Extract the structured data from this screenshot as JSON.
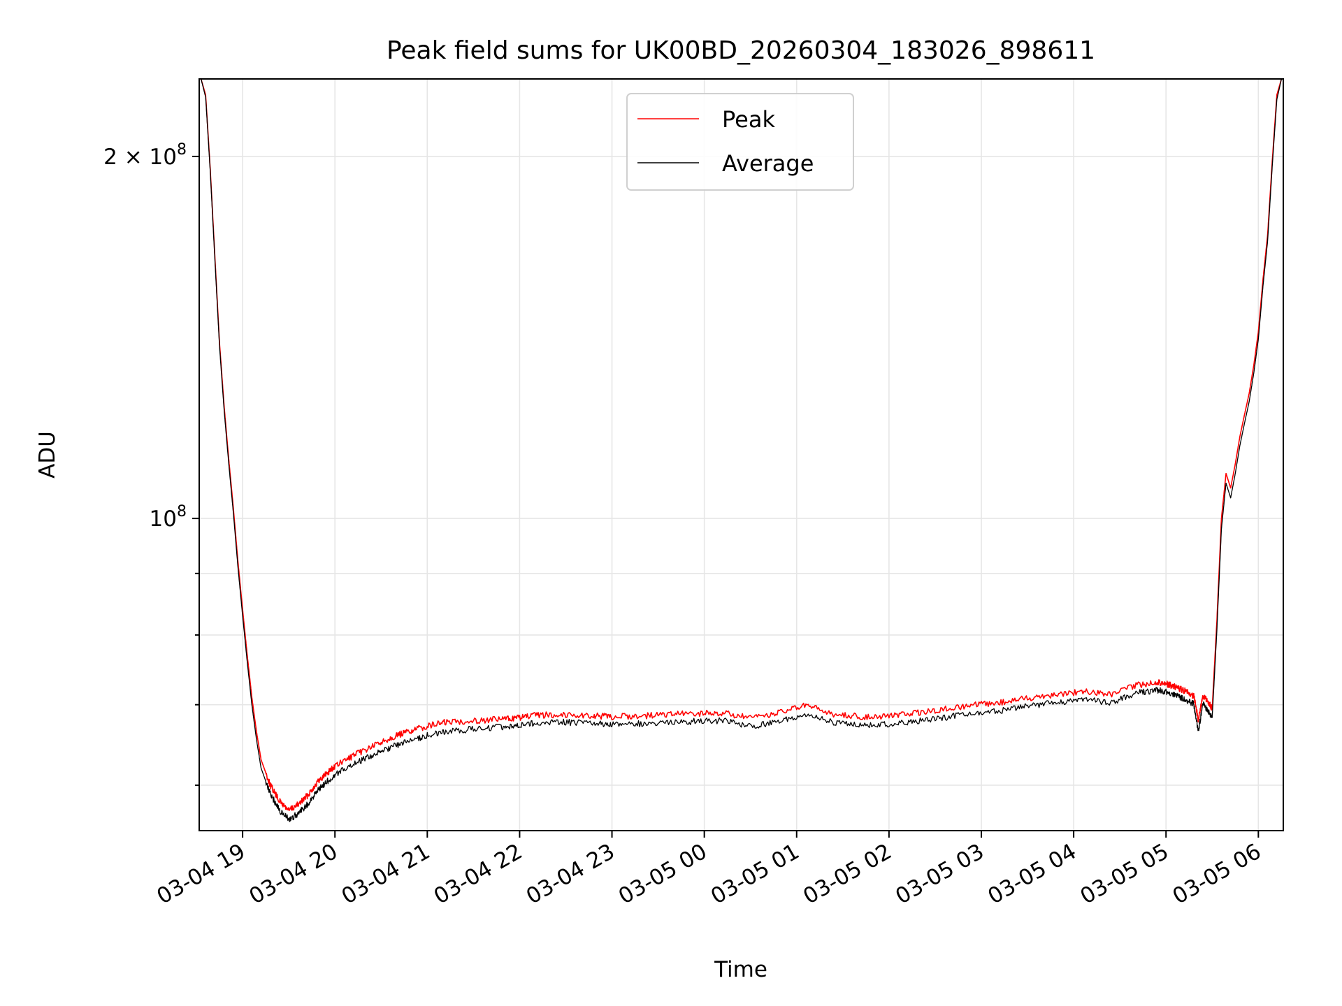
{
  "chart_data": {
    "type": "line",
    "title": "Peak field sums for UK00BD_20260304_183026_898611",
    "xlabel": "Time",
    "ylabel": "ADU",
    "y_scale": "log",
    "ylim": [
      55000000,
      232000000
    ],
    "xlim_hours": [
      18.53,
      30.27
    ],
    "x_ticks": [
      {
        "value": 19,
        "label": "03-04 19"
      },
      {
        "value": 20,
        "label": "03-04 20"
      },
      {
        "value": 21,
        "label": "03-04 21"
      },
      {
        "value": 22,
        "label": "03-04 22"
      },
      {
        "value": 23,
        "label": "03-04 23"
      },
      {
        "value": 24,
        "label": "03-05 00"
      },
      {
        "value": 25,
        "label": "03-05 01"
      },
      {
        "value": 26,
        "label": "03-05 02"
      },
      {
        "value": 27,
        "label": "03-05 03"
      },
      {
        "value": 28,
        "label": "03-05 04"
      },
      {
        "value": 29,
        "label": "03-05 05"
      },
      {
        "value": 30,
        "label": "03-05 06"
      }
    ],
    "y_major_ticks": [
      {
        "value": 100000000,
        "base": "10",
        "exp": "8",
        "mant": ""
      },
      {
        "value": 200000000,
        "base": "10",
        "exp": "8",
        "mant": "2 × "
      }
    ],
    "y_minor_ticks": [
      60000000,
      70000000,
      80000000,
      90000000
    ],
    "legend": {
      "position": "upper center",
      "entries": [
        {
          "label": "Peak",
          "color": "#ff0000"
        },
        {
          "label": "Average",
          "color": "#000000"
        }
      ]
    },
    "grid": true,
    "series": [
      {
        "name": "Peak",
        "color": "#ff0000",
        "hours": [
          18.55,
          18.6,
          18.65,
          18.7,
          18.75,
          18.8,
          18.85,
          18.9,
          18.95,
          19.0,
          19.05,
          19.1,
          19.15,
          19.2,
          19.3,
          19.4,
          19.5,
          19.6,
          19.7,
          19.8,
          19.9,
          20.0,
          20.2,
          20.4,
          20.6,
          20.8,
          21.0,
          21.2,
          21.5,
          21.8,
          22.0,
          22.2,
          22.5,
          22.8,
          23.0,
          23.3,
          23.6,
          23.9,
          24.2,
          24.5,
          24.8,
          25.1,
          25.4,
          25.7,
          26.0,
          26.3,
          26.6,
          26.9,
          27.2,
          27.5,
          27.8,
          28.1,
          28.4,
          28.7,
          28.9,
          29.0,
          29.1,
          29.2,
          29.3,
          29.35,
          29.4,
          29.45,
          29.5,
          29.55,
          29.6,
          29.65,
          29.7,
          29.75,
          29.8,
          29.85,
          29.9,
          29.95,
          30.0,
          30.05,
          30.1,
          30.15,
          30.2,
          30.25
        ],
        "values": [
          232000000,
          225000000,
          195000000,
          165000000,
          140000000,
          124000000,
          112000000,
          102000000,
          92000000,
          84000000,
          77000000,
          71000000,
          66500000,
          63000000,
          60000000,
          58200000,
          57200000,
          57800000,
          58800000,
          60200000,
          61300000,
          62200000,
          63500000,
          64600000,
          65700000,
          66500000,
          67200000,
          67700000,
          67900000,
          68100000,
          68300000,
          68600000,
          68700000,
          68500000,
          68400000,
          68500000,
          68700000,
          68800000,
          68900000,
          68200000,
          68900000,
          69900000,
          68700000,
          68400000,
          68500000,
          68900000,
          69400000,
          69900000,
          70300000,
          70900000,
          71400000,
          71800000,
          71400000,
          72700000,
          73100000,
          72900000,
          72400000,
          71900000,
          71200000,
          68000000,
          71200000,
          70400000,
          69500000,
          82000000,
          100000000,
          109000000,
          106000000,
          111000000,
          117000000,
          122000000,
          127000000,
          134000000,
          143000000,
          158000000,
          172000000,
          198000000,
          225000000,
          232000000
        ]
      },
      {
        "name": "Average",
        "color": "#000000",
        "hours": [
          18.55,
          18.6,
          18.65,
          18.7,
          18.75,
          18.8,
          18.85,
          18.9,
          18.95,
          19.0,
          19.05,
          19.1,
          19.15,
          19.2,
          19.3,
          19.4,
          19.5,
          19.6,
          19.7,
          19.8,
          19.9,
          20.0,
          20.2,
          20.4,
          20.6,
          20.8,
          21.0,
          21.2,
          21.5,
          21.8,
          22.0,
          22.2,
          22.5,
          22.8,
          23.0,
          23.3,
          23.6,
          23.9,
          24.2,
          24.5,
          24.8,
          25.1,
          25.4,
          25.7,
          26.0,
          26.3,
          26.6,
          26.9,
          27.2,
          27.5,
          27.8,
          28.1,
          28.4,
          28.7,
          28.9,
          29.0,
          29.1,
          29.2,
          29.3,
          29.35,
          29.4,
          29.45,
          29.5,
          29.55,
          29.6,
          29.65,
          29.7,
          29.75,
          29.8,
          29.85,
          29.9,
          29.95,
          30.0,
          30.05,
          30.1,
          30.15,
          30.2,
          30.25
        ],
        "values": [
          232000000,
          224000000,
          194000000,
          164000000,
          139000000,
          123000000,
          111000000,
          101000000,
          91000000,
          83000000,
          76000000,
          70000000,
          65500000,
          62000000,
          59000000,
          57200000,
          56200000,
          56800000,
          57800000,
          59200000,
          60300000,
          61200000,
          62500000,
          63500000,
          64500000,
          65300000,
          66000000,
          66500000,
          66800000,
          67100000,
          67300000,
          67600000,
          67700000,
          67500000,
          67400000,
          67500000,
          67700000,
          67800000,
          67900000,
          67100000,
          67800000,
          68800000,
          67600000,
          67300000,
          67400000,
          67800000,
          68300000,
          68800000,
          69200000,
          69800000,
          70300000,
          70700000,
          70300000,
          71600000,
          72000000,
          71800000,
          71300000,
          70800000,
          70100000,
          66500000,
          70100000,
          69300000,
          68300000,
          80500000,
          98000000,
          107000000,
          104000000,
          109000000,
          115000000,
          120000000,
          125000000,
          132000000,
          141000000,
          156000000,
          170000000,
          196000000,
          223000000,
          232000000
        ]
      }
    ]
  }
}
